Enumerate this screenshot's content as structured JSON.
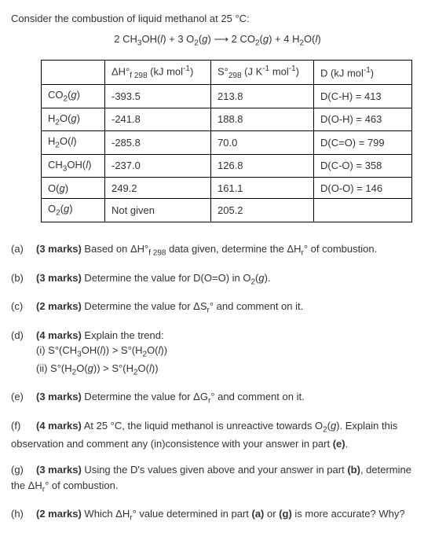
{
  "intro": "Consider the combustion of liquid methanol at 25 °C:",
  "equation_html": "2 CH<span class='sub'>3</span>OH(<span class='it'>l</span>) + 3 O<span class='sub'>2</span>(<span class='it'>g</span>) &#10230; 2 CO<span class='sub'>2</span>(<span class='it'>g</span>) + 4 H<span class='sub'>2</span>O(<span class='it'>l</span>)",
  "table": {
    "header": [
      "",
      "ΔH°<span class='sub'>f 298</span> (kJ mol<span class='sup'>-1</span>)",
      "S°<span class='sub'>298</span> (J K<span class='sup'>-1</span> mol<span class='sup'>-1</span>)",
      "D (kJ mol<span class='sup'>-1</span>)"
    ],
    "rows": [
      [
        "CO<span class='sub'>2</span>(<span class='it'>g</span>)",
        "-393.5",
        "213.8",
        "D(C-H) = 413"
      ],
      [
        "H<span class='sub'>2</span>O(<span class='it'>g</span>)",
        "-241.8",
        "188.8",
        "D(O-H) = 463"
      ],
      [
        "H<span class='sub'>2</span>O(<span class='it'>l</span>)",
        "-285.8",
        "70.0",
        "D(C=O) = 799"
      ],
      [
        "CH<span class='sub'>3</span>OH(<span class='it'>l</span>)",
        "-237.0",
        "126.8",
        "D(C-O) = 358"
      ],
      [
        "O(<span class='it'>g</span>)",
        "249.2",
        "161.1",
        "D(O-O) = 146"
      ],
      [
        "O<span class='sub'>2</span>(<span class='it'>g</span>)",
        "Not given",
        "205.2",
        ""
      ]
    ]
  },
  "questions": [
    {
      "label": "(a)",
      "marks": "(3 marks)",
      "body": "Based on ΔH°<span class='sub'>f 298</span> data given, determine the ΔH<span class='sub'>r</span>° of combustion."
    },
    {
      "label": "(b)",
      "marks": "(3 marks)",
      "body": "Determine the value for D(O=O) in O<span class='sub'>2</span>(<span class='it'>g</span>)."
    },
    {
      "label": "(c)",
      "marks": "(2 marks)",
      "body": "Determine the value for ΔS<span class='sub'>r</span>° and comment on it."
    },
    {
      "label": "(d)",
      "marks": "(4 marks)",
      "body": "Explain the trend:<br>(i) S°(CH<span class='sub'>3</span>OH(<span class='it'>l</span>)) &gt; S°(H<span class='sub'>2</span>O(<span class='it'>l</span>))<br>(ii) S°(H<span class='sub'>2</span>O(<span class='it'>g</span>)) &gt; S°(H<span class='sub'>2</span>O(<span class='it'>l</span>))"
    },
    {
      "label": "(e)",
      "marks": "(3 marks)",
      "body": "Determine the value for ΔG<span class='sub'>r</span>° and comment on it."
    },
    {
      "label": "(f)",
      "marks": "(4 marks)",
      "body": "At 25 °C, the liquid methanol is unreactive towards O<span class='sub'>2</span>(<span class='it'>g</span>).  Explain this observation and comment any (in)consistence with your answer in part <b>(e)</b>.",
      "wrap": true
    },
    {
      "label": "(g)",
      "marks": "(3 marks)",
      "body": "Using the D's values given above and your answer in part <b>(b)</b>, determine the ΔH<span class='sub'>r</span>° of combustion.",
      "wrap": true
    },
    {
      "label": "(h)",
      "marks": "(2 marks)",
      "body": "Which ΔH<span class='sub'>r</span>° value determined in part <b>(a)</b> or <b>(g)</b> is more accurate? Why?"
    }
  ]
}
